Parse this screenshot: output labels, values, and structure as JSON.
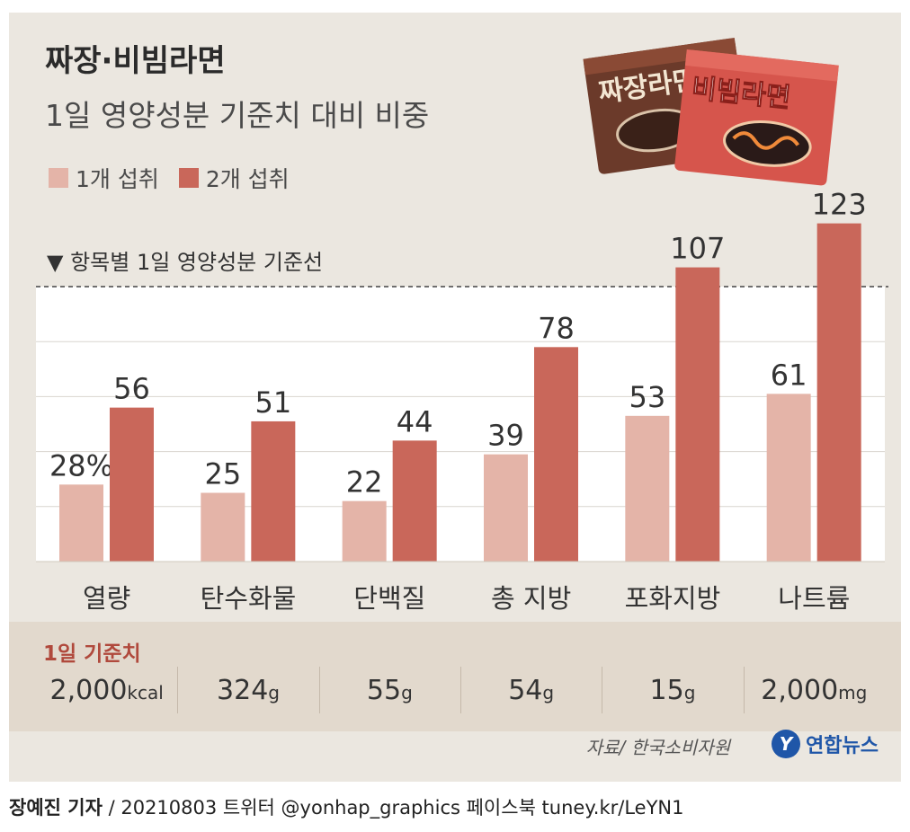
{
  "title": "짜장·비빔라면",
  "subtitle": "1일 영양성분 기준치 대비 비중",
  "legend": [
    {
      "label": "1개 섭취",
      "color": "#e4b4a8"
    },
    {
      "label": "2개 섭취",
      "color": "#c9675a"
    }
  ],
  "reference_label": "▼ 항목별 1일 영양성분 기준선",
  "package_labels": {
    "left": "짜장라면",
    "right": "비빔라면"
  },
  "chart_data": {
    "type": "bar",
    "title": "짜장·비빔라면 1일 영양성분 기준치 대비 비중",
    "ylabel": "%",
    "ylim": [
      0,
      125
    ],
    "reference_line": 100,
    "categories": [
      "열량",
      "탄수화물",
      "단백질",
      "총 지방",
      "포화지방",
      "나트륨"
    ],
    "series": [
      {
        "name": "1개 섭취",
        "values": [
          28,
          25,
          22,
          39,
          53,
          61
        ]
      },
      {
        "name": "2개 섭취",
        "values": [
          56,
          51,
          44,
          78,
          107,
          123
        ]
      }
    ],
    "value_labels": {
      "1개 섭취": [
        "28%",
        "25",
        "22",
        "39",
        "53",
        "61"
      ],
      "2개 섭취": [
        "56",
        "51",
        "44",
        "78",
        "107",
        "123"
      ]
    }
  },
  "daily_standard": {
    "title": "1일 기준치",
    "values": [
      {
        "num": "2,000",
        "unit": "kcal"
      },
      {
        "num": "324",
        "unit": "g"
      },
      {
        "num": "55",
        "unit": "g"
      },
      {
        "num": "54",
        "unit": "g"
      },
      {
        "num": "15",
        "unit": "g"
      },
      {
        "num": "2,000",
        "unit": "mg"
      }
    ]
  },
  "source": "자료/ 한국소비자원",
  "logo": {
    "mark": "Y",
    "text": "연합뉴스"
  },
  "credit": {
    "author": "장예진 기자",
    "rest": " / 20210803 트위터 @yonhap_graphics  페이스북 tuney.kr/LeYN1"
  }
}
